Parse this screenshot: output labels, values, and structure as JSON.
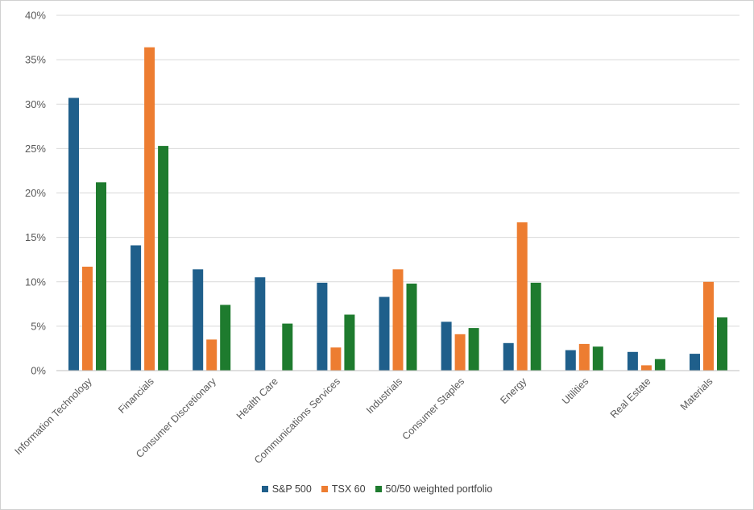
{
  "chart_data": {
    "type": "bar",
    "title": "",
    "xlabel": "",
    "ylabel": "",
    "ylim": [
      0,
      40
    ],
    "ytick_step": 5,
    "ytick_suffix": "%",
    "grid": true,
    "legend_position": "bottom",
    "categories": [
      "Information Technology",
      "Financials",
      "Consumer Discretionary",
      "Health Care",
      "Communications Services",
      "Industrials",
      "Consumer Staples",
      "Energy",
      "Utilities",
      "Real Estate",
      "Materials"
    ],
    "series": [
      {
        "name": "S&P 500",
        "color": "#1f5f8b",
        "values": [
          30.7,
          14.1,
          11.4,
          10.5,
          9.9,
          8.3,
          5.5,
          3.1,
          2.3,
          2.1,
          1.9
        ]
      },
      {
        "name": "TSX 60",
        "color": "#ed7d31",
        "values": [
          11.7,
          36.4,
          3.5,
          0.0,
          2.6,
          11.4,
          4.1,
          16.7,
          3.0,
          0.6,
          10.0
        ]
      },
      {
        "name": "50/50 weighted portfolio",
        "color": "#1e7b2e",
        "values": [
          21.2,
          25.3,
          7.4,
          5.3,
          6.3,
          9.8,
          4.8,
          9.9,
          2.7,
          1.3,
          6.0
        ]
      }
    ]
  }
}
